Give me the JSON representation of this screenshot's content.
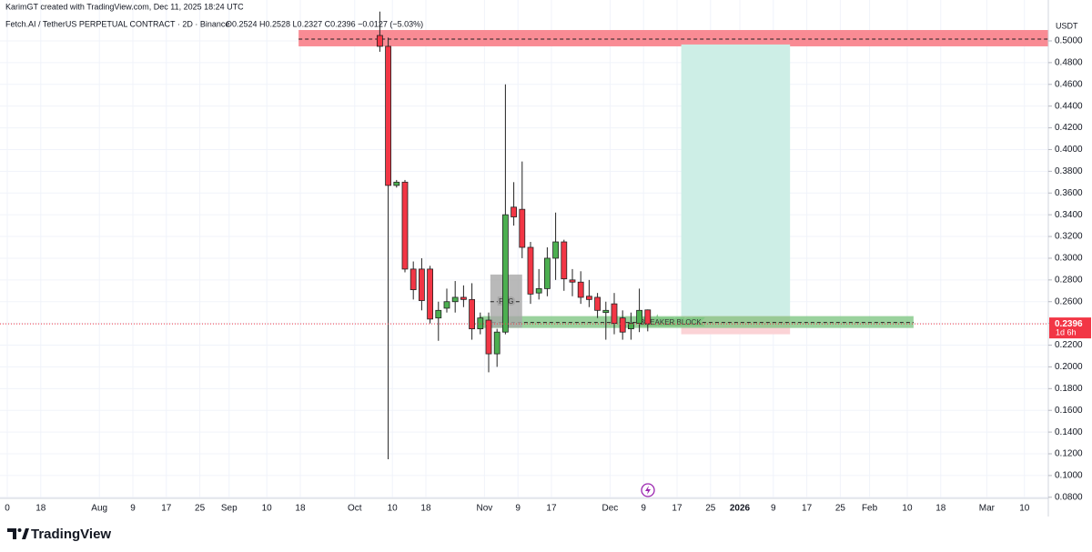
{
  "chart_data": {
    "type": "candlestick",
    "credit": "KarimGT created with TradingView.com, Dec 11, 2025 18:24 UTC",
    "title": "Fetch.AI / TetherUS PERPETUAL CONTRACT · 2D · Binance",
    "ohlc_text": "O0.2524 H0.2528 L0.2327 C0.2396 −0.0127 (−5.03%)",
    "currency": "USDT",
    "brand": "TradingView",
    "up_color": "#4caf50",
    "down_color": "#f23645",
    "grid": true,
    "x": [
      89,
      91,
      93,
      95,
      97,
      99,
      101,
      103,
      105,
      107,
      109,
      111,
      113,
      115,
      117,
      119,
      121,
      123,
      125,
      127,
      129,
      131,
      133,
      135,
      137,
      139,
      141,
      143,
      145,
      147,
      149,
      151,
      153
    ],
    "open": [
      0.505,
      0.495,
      0.367,
      0.37,
      0.29,
      0.29,
      0.29,
      0.245,
      0.254,
      0.26,
      0.264,
      0.262,
      0.235,
      0.243,
      0.212,
      0.232,
      0.347,
      0.345,
      0.31,
      0.268,
      0.272,
      0.3,
      0.315,
      0.28,
      0.278,
      0.265,
      0.264,
      0.25,
      0.258,
      0.245,
      0.235,
      0.24,
      0.2524
    ],
    "high": [
      0.527,
      0.503,
      0.372,
      0.372,
      0.297,
      0.3,
      0.293,
      0.26,
      0.272,
      0.279,
      0.275,
      0.277,
      0.25,
      0.25,
      0.235,
      0.46,
      0.37,
      0.389,
      0.315,
      0.29,
      0.31,
      0.342,
      0.317,
      0.29,
      0.288,
      0.28,
      0.268,
      0.26,
      0.268,
      0.252,
      0.25,
      0.272,
      0.2528
    ],
    "low": [
      0.49,
      0.115,
      0.365,
      0.287,
      0.262,
      0.252,
      0.24,
      0.224,
      0.25,
      0.25,
      0.255,
      0.225,
      0.23,
      0.195,
      0.2,
      0.23,
      0.33,
      0.3,
      0.258,
      0.262,
      0.265,
      0.28,
      0.27,
      0.265,
      0.258,
      0.255,
      0.245,
      0.225,
      0.23,
      0.225,
      0.225,
      0.232,
      0.2327
    ],
    "close": [
      0.495,
      0.367,
      0.37,
      0.29,
      0.271,
      0.261,
      0.244,
      0.252,
      0.26,
      0.264,
      0.262,
      0.235,
      0.245,
      0.212,
      0.232,
      0.34,
      0.338,
      0.31,
      0.267,
      0.272,
      0.3,
      0.315,
      0.281,
      0.278,
      0.264,
      0.262,
      0.252,
      0.252,
      0.24,
      0.232,
      0.24,
      0.252,
      0.2396
    ],
    "xlim": [
      -1.74,
      248.7
    ],
    "ylim": [
      0.079,
      0.5276
    ],
    "yticks": [
      {
        "value": 0.08,
        "label": "0.0800"
      },
      {
        "value": 0.1,
        "label": "0.1000"
      },
      {
        "value": 0.12,
        "label": "0.1200"
      },
      {
        "value": 0.14,
        "label": "0.1400"
      },
      {
        "value": 0.16,
        "label": "0.1600"
      },
      {
        "value": 0.18,
        "label": "0.1800"
      },
      {
        "value": 0.2,
        "label": "0.2000"
      },
      {
        "value": 0.22,
        "label": "0.2200"
      },
      {
        "value": 0.24,
        "label": "0.2400"
      },
      {
        "value": 0.26,
        "label": "0.2600"
      },
      {
        "value": 0.28,
        "label": "0.2800"
      },
      {
        "value": 0.3,
        "label": "0.3000"
      },
      {
        "value": 0.32,
        "label": "0.3200"
      },
      {
        "value": 0.34,
        "label": "0.3400"
      },
      {
        "value": 0.36,
        "label": "0.3600"
      },
      {
        "value": 0.38,
        "label": "0.3800"
      },
      {
        "value": 0.4,
        "label": "0.4000"
      },
      {
        "value": 0.42,
        "label": "0.4200"
      },
      {
        "value": 0.44,
        "label": "0.4400"
      },
      {
        "value": 0.46,
        "label": "0.4600"
      },
      {
        "value": 0.48,
        "label": "0.4800"
      },
      {
        "value": 0.5,
        "label": "0.5000"
      }
    ],
    "xticks": [
      {
        "value": 0,
        "label": "0"
      },
      {
        "value": 8,
        "label": "18"
      },
      {
        "value": 22,
        "label": "Aug"
      },
      {
        "value": 30,
        "label": "9"
      },
      {
        "value": 38,
        "label": "17"
      },
      {
        "value": 46,
        "label": "25"
      },
      {
        "value": 53,
        "label": "Sep"
      },
      {
        "value": 62,
        "label": "10"
      },
      {
        "value": 70,
        "label": "18"
      },
      {
        "value": 83,
        "label": "Oct"
      },
      {
        "value": 92,
        "label": "10"
      },
      {
        "value": 100,
        "label": "18"
      },
      {
        "value": 114,
        "label": "Nov"
      },
      {
        "value": 122,
        "label": "9"
      },
      {
        "value": 130,
        "label": "17"
      },
      {
        "value": 144,
        "label": "Dec"
      },
      {
        "value": 152,
        "label": "9"
      },
      {
        "value": 160,
        "label": "17"
      },
      {
        "value": 168,
        "label": "25"
      },
      {
        "value": 175,
        "label": "2026"
      },
      {
        "value": 183,
        "label": "9"
      },
      {
        "value": 191,
        "label": "17"
      },
      {
        "value": 199,
        "label": "25"
      },
      {
        "value": 206,
        "label": "Feb"
      },
      {
        "value": 215,
        "label": "10"
      },
      {
        "value": 223,
        "label": "18"
      },
      {
        "value": 234,
        "label": "Mar"
      },
      {
        "value": 243,
        "label": "10"
      }
    ],
    "zones": [
      {
        "x": [
          69.6,
          248.7
        ],
        "y": [
          0.495,
          0.51
        ],
        "color": "#f98b94",
        "line": 0.5017
      },
      {
        "x": [
          161,
          187
        ],
        "y": [
          0.2467,
          0.4967
        ],
        "color": "#cdeee6"
      },
      {
        "x": [
          161,
          187
        ],
        "y": [
          0.23,
          0.2467
        ],
        "color": "#fbd3d6"
      },
      {
        "x": [
          112.8,
          216.5
        ],
        "y": [
          0.2358,
          0.2467
        ],
        "color": "#81c784",
        "line": 0.2408,
        "name": "BREAKER BLOCK"
      },
      {
        "x": [
          115.4,
          123
        ],
        "y": [
          0.236,
          0.285
        ],
        "color": "#a8a8a8",
        "line": 0.26,
        "name": "FVG"
      }
    ],
    "last_price": 0.2396,
    "countdown": "1d 6h"
  }
}
